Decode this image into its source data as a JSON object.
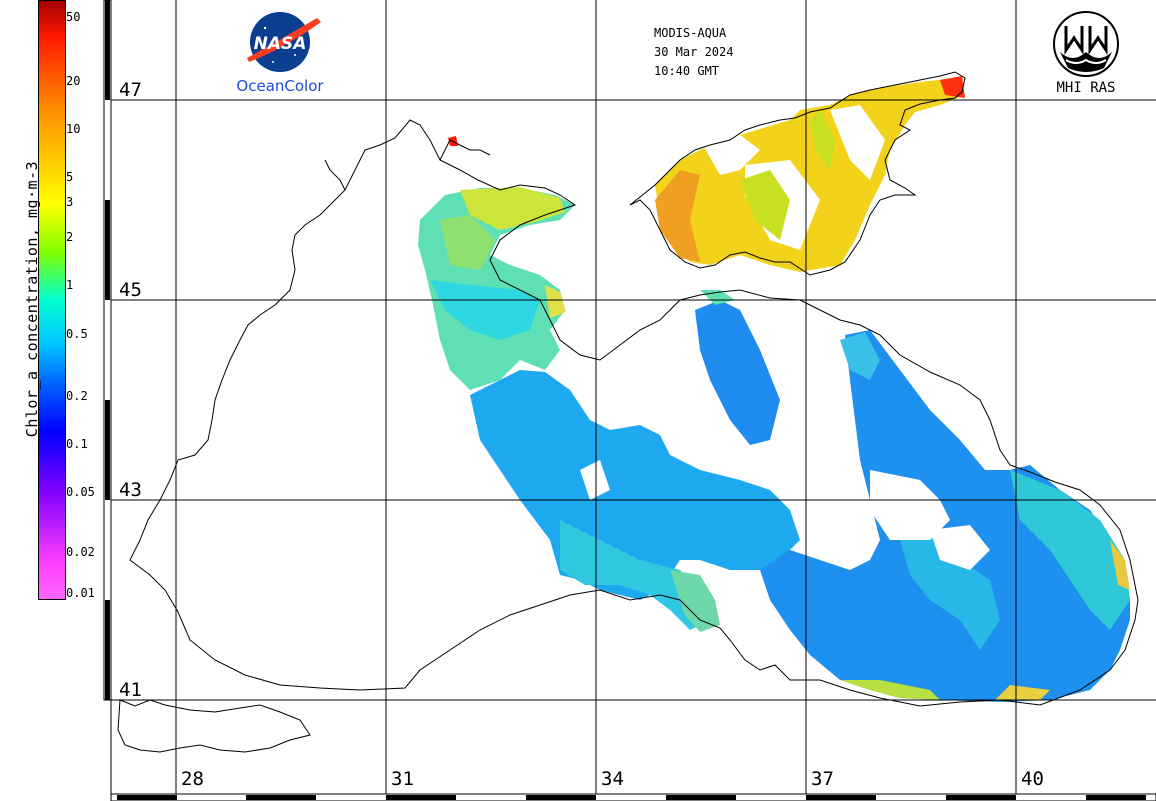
{
  "colorbar": {
    "title": "Chlor_a concentration, mg·m-3",
    "ticks": [
      "50",
      "20",
      "10",
      "5",
      "3",
      "2",
      "1",
      "0.5",
      "0.2",
      "0.1",
      "0.05",
      "0.02",
      "0.01"
    ]
  },
  "header": {
    "sensor": "MODIS-AQUA",
    "date": "30 Mar 2024",
    "time": "10:40 GMT"
  },
  "logos": {
    "nasa_word": "NASA",
    "nasa_caption": "OceanColor",
    "mhi_caption": "MHI RAS"
  },
  "grid": {
    "latitudes": [
      "47",
      "45",
      "43",
      "41"
    ],
    "longitudes": [
      "28",
      "31",
      "34",
      "37",
      "40"
    ]
  },
  "colors": {
    "nasa_blue": "#1a4bd6",
    "coastline": "#000000",
    "grid": "#000000"
  }
}
